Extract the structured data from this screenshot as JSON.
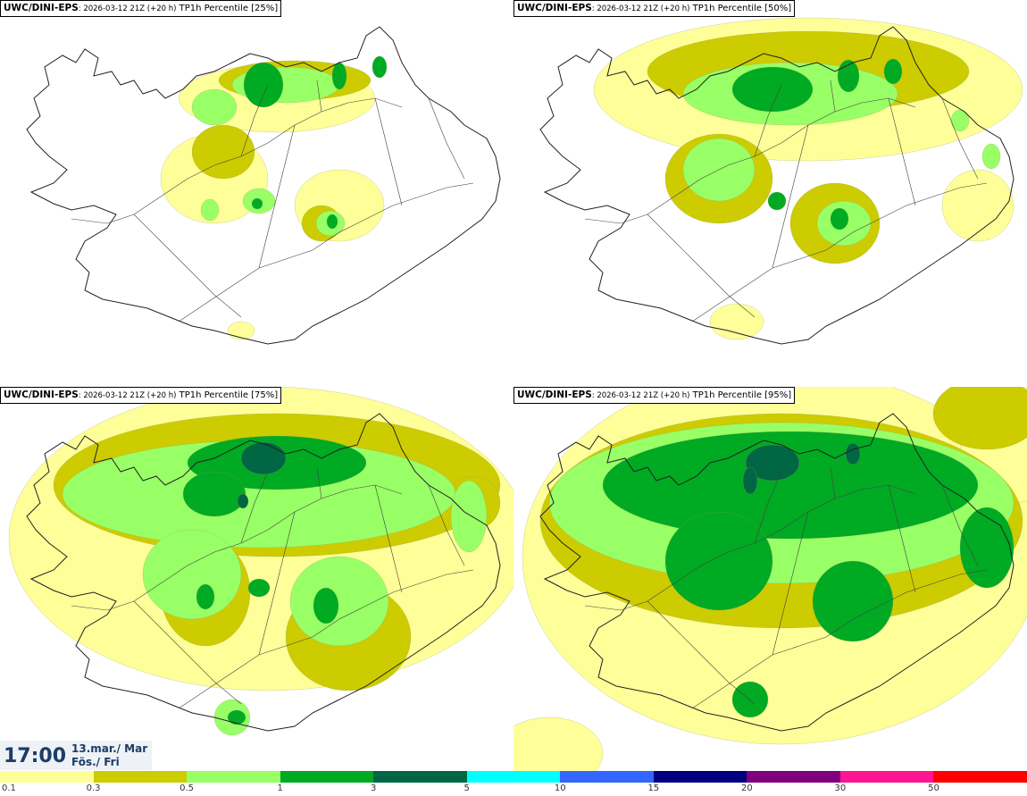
{
  "panels": [
    {
      "model": "UWC/DINI-EPS",
      "run": ": 2026-03-12 21Z (+20 h)",
      "param": " TP1h Percentile [25%]",
      "level": 0
    },
    {
      "model": "UWC/DINI-EPS",
      "run": ": 2026-03-12 21Z (+20 h)",
      "param": " TP1h Percentile [50%]",
      "level": 1
    },
    {
      "model": "UWC/DINI-EPS",
      "run": ": 2026-03-12 21Z (+20 h)",
      "param": " TP1h Percentile [75%]",
      "level": 2
    },
    {
      "model": "UWC/DINI-EPS",
      "run": ": 2026-03-12 21Z (+20 h)",
      "param": " TP1h Percentile [95%]",
      "level": 3
    }
  ],
  "valid_time": {
    "time": "17:00",
    "date_line1": "13.mar./ Mar",
    "date_line2": "Fös./ Fri"
  },
  "colorbar": {
    "colors": [
      "#ffff99",
      "#cccc00",
      "#99ff66",
      "#00aa22",
      "#006644",
      "#00ffff",
      "#3366ff",
      "#000080",
      "#800080",
      "#ff1493",
      "#ff0000"
    ],
    "labels": [
      "0.1",
      "0.3",
      "0.5",
      "1",
      "3",
      "5",
      "10",
      "15",
      "20",
      "30",
      "50"
    ]
  }
}
